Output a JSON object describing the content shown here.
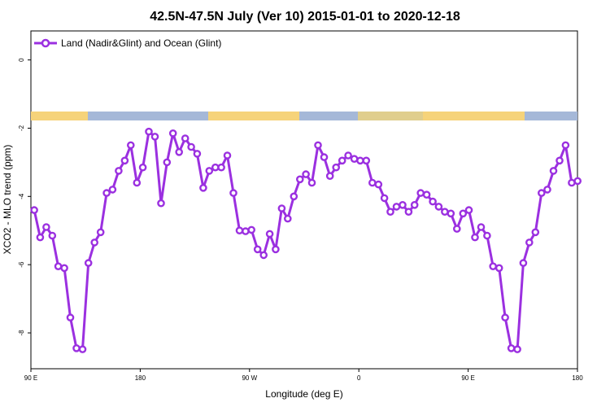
{
  "chart_data": {
    "type": "line",
    "title": "42.5N-47.5N July (Ver 10)   2015-01-01 to 2020-12-18",
    "xlabel": "Longitude (deg E)",
    "ylabel": "XCO2 - MLO trend (ppm)",
    "xlim": [
      90,
      450
    ],
    "ylim": [
      -9.05,
      0.85
    ],
    "x_ticks": [
      {
        "value": 90,
        "label": "90 E"
      },
      {
        "value": 162,
        "label": "180"
      },
      {
        "value": 234,
        "label": "90 W"
      },
      {
        "value": 306,
        "label": "0"
      },
      {
        "value": 378,
        "label": "90 E"
      },
      {
        "value": 450,
        "label": "180"
      }
    ],
    "y_ticks": [
      0,
      -2,
      -4,
      -6,
      -8
    ],
    "legend": {
      "position": "top-left"
    },
    "series": [
      {
        "name": "Land (Nadir&Glint) and Ocean (Glint)",
        "color": "#9b30e0",
        "x": [
          92.2,
          96.1,
          100.1,
          104.1,
          108.0,
          112.0,
          116.0,
          120.0,
          124.0,
          127.9,
          131.9,
          135.9,
          139.9,
          143.8,
          147.8,
          151.8,
          155.8,
          159.8,
          163.7,
          167.7,
          171.7,
          175.7,
          179.6,
          183.6,
          187.6,
          191.6,
          195.6,
          199.5,
          203.5,
          207.5,
          211.5,
          215.4,
          219.4,
          223.4,
          227.4,
          231.4,
          235.3,
          239.3,
          243.3,
          247.3,
          251.2,
          255.2,
          259.2,
          263.2,
          267.2,
          271.1,
          275.1,
          279.1,
          283.1,
          287.0,
          291.0,
          295.0,
          299.0,
          303.0,
          306.9,
          310.9,
          314.9,
          318.9,
          322.8,
          326.8,
          330.8,
          334.8,
          338.8,
          342.7,
          346.7,
          350.7,
          354.7,
          358.6,
          362.6,
          366.6,
          370.6,
          374.6,
          378.5,
          382.5,
          386.5,
          390.5,
          394.4,
          398.4,
          402.4,
          406.4,
          410.4,
          414.3,
          418.3,
          422.3,
          426.3,
          430.2,
          434.2,
          438.2,
          442.2,
          446.2,
          450.1
        ],
        "y": [
          -4.4,
          -5.2,
          -4.9,
          -5.15,
          -6.05,
          -6.1,
          -7.55,
          -8.45,
          -8.48,
          -5.95,
          -5.35,
          -5.05,
          -3.9,
          -3.8,
          -3.25,
          -2.95,
          -2.5,
          -3.6,
          -3.15,
          -2.1,
          -2.25,
          -4.2,
          -3.0,
          -2.15,
          -2.7,
          -2.3,
          -2.55,
          -2.75,
          -3.75,
          -3.25,
          -3.15,
          -3.15,
          -2.8,
          -3.9,
          -5.0,
          -5.02,
          -4.98,
          -5.55,
          -5.72,
          -5.1,
          -5.55,
          -4.35,
          -4.65,
          -4.0,
          -3.5,
          -3.35,
          -3.6,
          -2.5,
          -2.85,
          -3.4,
          -3.15,
          -2.95,
          -2.8,
          -2.9,
          -2.95,
          -2.95,
          -3.6,
          -3.65,
          -4.05,
          -4.45,
          -4.3,
          -4.25,
          -4.45,
          -4.25,
          -3.9,
          -3.95,
          -4.15,
          -4.3,
          -4.45,
          -4.5,
          -4.95,
          -4.5,
          -4.4,
          -5.2,
          -4.9,
          -5.15,
          -6.05,
          -6.1,
          -7.55,
          -8.45,
          -8.48,
          -5.95,
          -5.35,
          -5.05,
          -3.9,
          -3.8,
          -3.25,
          -2.95,
          -2.5,
          -3.6,
          -3.55
        ]
      }
    ]
  }
}
